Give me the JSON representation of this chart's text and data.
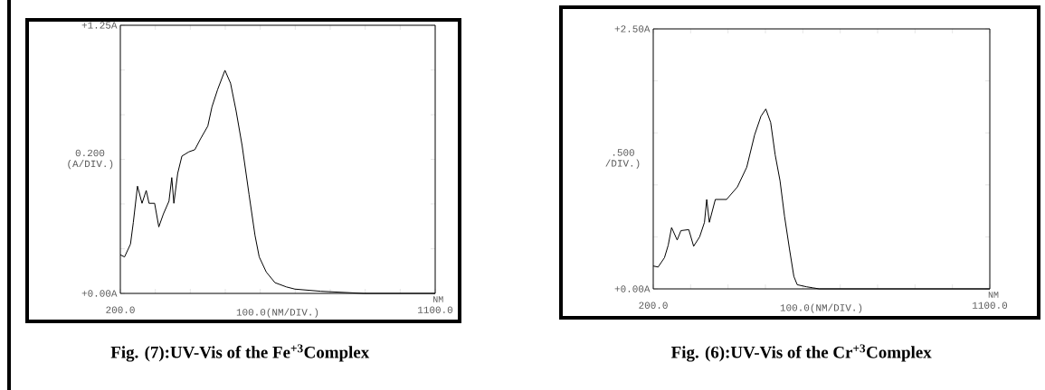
{
  "chart_data": [
    {
      "type": "line",
      "title": "Fig. (7):UV-Vis of the  Fe$^{+3}$Complex",
      "ylabel": "0.200 (A/DIV.)",
      "xlabel": "100.0(NM/DIV.)",
      "annotations": [
        "NM"
      ],
      "color": "#000000",
      "xlim": [
        200,
        1100
      ],
      "ylim": [
        0,
        1.25
      ],
      "xticks": [
        {
          "value": 200,
          "label": "200.0"
        },
        {
          "value": 300,
          "label": null
        },
        {
          "value": 400,
          "label": null
        },
        {
          "value": 500,
          "label": null
        },
        {
          "value": 600,
          "label": null
        },
        {
          "value": 700,
          "label": null
        },
        {
          "value": 800,
          "label": null
        },
        {
          "value": 900,
          "label": null
        },
        {
          "value": 1000,
          "label": null
        },
        {
          "value": 1100,
          "label": "1100.0"
        }
      ],
      "yticks": [
        {
          "value": 0,
          "label": "+0.00A"
        },
        {
          "value": 0.208,
          "label": null
        },
        {
          "value": 0.417,
          "label": null
        },
        {
          "value": 0.625,
          "label": null
        },
        {
          "value": 0.833,
          "label": null
        },
        {
          "value": 1.042,
          "label": null
        },
        {
          "value": 1.25,
          "label": "+1.25A"
        }
      ],
      "x": [
        200,
        212,
        229,
        237,
        249,
        262,
        274,
        282,
        298,
        310,
        323,
        339,
        347,
        353,
        364,
        376,
        396,
        413,
        429,
        450,
        462,
        478,
        499,
        515,
        531,
        548,
        568,
        585,
        597,
        617,
        642,
        675,
        699,
        773,
        896,
        1100
      ],
      "values": [
        0.18,
        0.17,
        0.23,
        0.33,
        0.5,
        0.42,
        0.48,
        0.42,
        0.42,
        0.31,
        0.37,
        0.43,
        0.54,
        0.42,
        0.56,
        0.64,
        0.66,
        0.67,
        0.72,
        0.78,
        0.87,
        0.95,
        1.04,
        0.98,
        0.85,
        0.69,
        0.46,
        0.27,
        0.17,
        0.1,
        0.05,
        0.03,
        0.02,
        0.01,
        0.0,
        0.0
      ]
    },
    {
      "type": "line",
      "title": "Fig. (6):UV-Vis of the Cr$^{+3}$Complex",
      "ylabel": ".500 /DIV.)",
      "xlabel": "100.0(NM/DIV.)",
      "annotations": [
        "NM"
      ],
      "color": "#000000",
      "xlim": [
        200,
        1100
      ],
      "ylim": [
        0,
        2.5
      ],
      "xticks": [
        {
          "value": 200,
          "label": "200.0"
        },
        {
          "value": 300,
          "label": null
        },
        {
          "value": 400,
          "label": null
        },
        {
          "value": 500,
          "label": null
        },
        {
          "value": 600,
          "label": null
        },
        {
          "value": 700,
          "label": null
        },
        {
          "value": 800,
          "label": null
        },
        {
          "value": 900,
          "label": null
        },
        {
          "value": 1000,
          "label": null
        },
        {
          "value": 1100,
          "label": "1100.0"
        }
      ],
      "yticks": [
        {
          "value": 0,
          "label": "+0.00A"
        },
        {
          "value": 0.5,
          "label": null
        },
        {
          "value": 1.0,
          "label": null
        },
        {
          "value": 1.5,
          "label": null
        },
        {
          "value": 2.0,
          "label": null
        },
        {
          "value": 2.5,
          "label": "+2.50A"
        }
      ],
      "x": [
        200,
        213,
        230,
        240,
        249,
        264,
        274,
        295,
        308,
        324,
        337,
        343,
        350,
        366,
        396,
        425,
        450,
        471,
        488,
        501,
        514,
        526,
        539,
        551,
        564,
        576,
        585,
        610,
        627,
        644,
        1100
      ],
      "values": [
        0.22,
        0.21,
        0.3,
        0.42,
        0.59,
        0.47,
        0.56,
        0.57,
        0.41,
        0.5,
        0.64,
        0.86,
        0.64,
        0.86,
        0.86,
        0.98,
        1.17,
        1.48,
        1.66,
        1.73,
        1.6,
        1.29,
        1.04,
        0.7,
        0.39,
        0.12,
        0.04,
        0.02,
        0.01,
        0.0,
        0.0
      ]
    }
  ]
}
